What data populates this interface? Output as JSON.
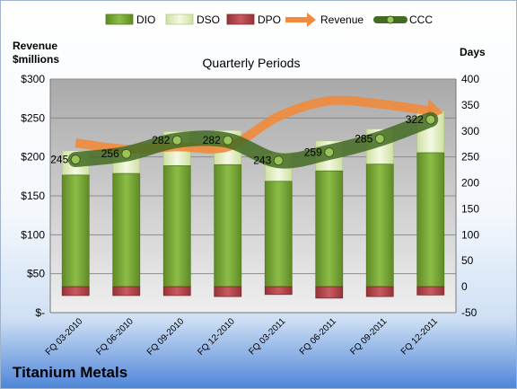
{
  "chart_data": {
    "type": "bar",
    "title": "Quarterly Periods",
    "company": "Titanium Metals",
    "left_axis_label_line1": "Revenue",
    "left_axis_label_line2": "$millions",
    "right_axis_label": "Days",
    "categories": [
      "FQ 03-2010",
      "FQ 06-2010",
      "FQ 09-2010",
      "FQ 12-2010",
      "FQ 03-2011",
      "FQ 06-2011",
      "FQ 09-2011",
      "FQ 12-2011"
    ],
    "left_axis": {
      "min": 0,
      "max": 300,
      "step": 50,
      "tick_labels": [
        "$-",
        "$50",
        "$100",
        "$150",
        "$200",
        "$250",
        "$300"
      ]
    },
    "right_axis": {
      "min": -50,
      "max": 400,
      "step": 50,
      "tick_labels": [
        "-50",
        "0",
        "50",
        "100",
        "150",
        "200",
        "250",
        "300",
        "350",
        "400"
      ]
    },
    "legend": [
      "DIO",
      "DSO",
      "DPO",
      "Revenue",
      "CCC"
    ],
    "legend_position": "top",
    "gridlines": true,
    "series": [
      {
        "name": "DIO",
        "axis": "right",
        "stack": true,
        "color": "#7aa33a",
        "values": [
          215,
          218,
          233,
          235,
          203,
          223,
          236,
          258
        ]
      },
      {
        "name": "DSO",
        "axis": "right",
        "stack": true,
        "color": "#e7f0c4",
        "values": [
          47,
          55,
          66,
          66,
          55,
          58,
          68,
          80
        ]
      },
      {
        "name": "DPO",
        "axis": "right",
        "stack": true,
        "color": "#b8474d",
        "values": [
          -17,
          -17,
          -17,
          -19,
          -15,
          -22,
          -19,
          -16
        ]
      },
      {
        "name": "Revenue",
        "axis": "left",
        "color": "#f08a3c",
        "values": [
          218,
          210,
          213,
          213,
          252,
          272,
          268,
          259
        ]
      },
      {
        "name": "CCC",
        "axis": "right",
        "color": "#4c7a26",
        "values": [
          245,
          256,
          282,
          282,
          243,
          259,
          285,
          322
        ]
      }
    ],
    "data_labels": [
      "245",
      "256",
      "282",
      "282",
      "243",
      "259",
      "285",
      "322"
    ]
  }
}
